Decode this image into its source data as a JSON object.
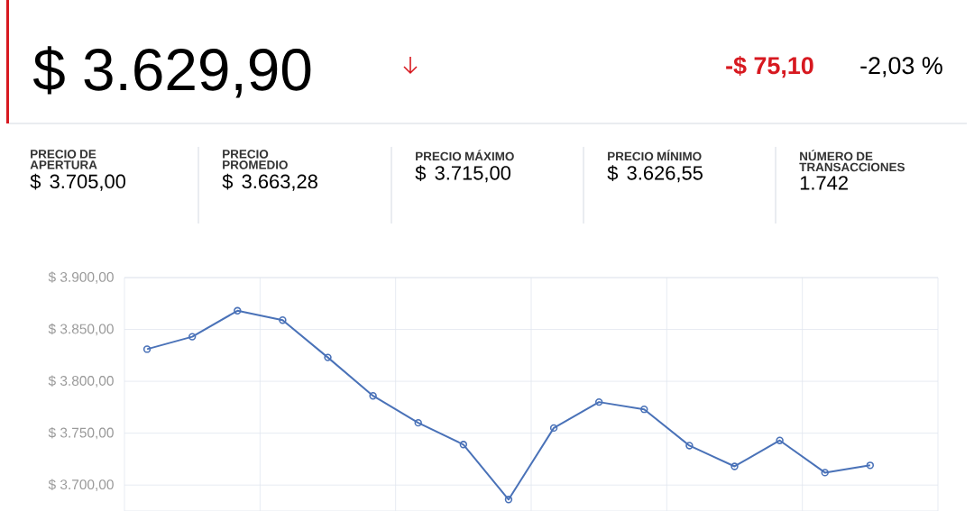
{
  "chart_data": {
    "type": "line",
    "annotations": [
      "$ 3.629,90",
      "-$ 75,10",
      "-2,03 %",
      "PRECIO DE APERTURA",
      "$ 3.705,00",
      "PRECIO PROMEDIO",
      "$ 3.663,28",
      "PRECIO MÁXIMO",
      "$ 3.715,00",
      "PRECIO MÍNIMO",
      "$ 3.626,55",
      "NÚMERO DE TRANSACCIONES",
      "1.742"
    ],
    "categories": [
      null,
      null,
      null,
      null,
      null,
      null,
      null,
      null,
      null,
      null,
      null,
      null,
      null,
      null,
      null,
      null,
      null,
      null
    ],
    "series": [
      {
        "color": "#4a72b8",
        "values": [
          3831,
          3843,
          3868,
          3859,
          3823,
          3786,
          3760,
          3739,
          3686,
          3755,
          3780,
          3773,
          3738,
          3718,
          3743,
          3712,
          3719,
          null
        ]
      }
    ],
    "ylim": [
      3675,
      3900
    ],
    "yticks": [
      {
        "value": 3700,
        "label": "$ 3.700,00"
      },
      {
        "value": 3750,
        "label": "$ 3.750,00"
      },
      {
        "value": 3800,
        "label": "$ 3.800,00"
      },
      {
        "value": 3850,
        "label": "$ 3.850,00"
      },
      {
        "value": 3900,
        "label": "$ 3.900,00"
      }
    ],
    "grid": true,
    "marker": "circle",
    "line_style": "solid"
  }
}
